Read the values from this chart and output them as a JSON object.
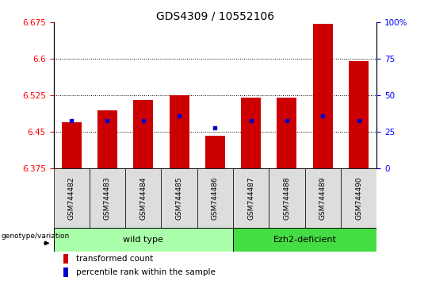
{
  "title": "GDS4309 / 10552106",
  "samples": [
    "GSM744482",
    "GSM744483",
    "GSM744484",
    "GSM744485",
    "GSM744486",
    "GSM744487",
    "GSM744488",
    "GSM744489",
    "GSM744490"
  ],
  "transformed_count": [
    6.47,
    6.495,
    6.515,
    6.525,
    6.443,
    6.52,
    6.52,
    6.672,
    6.595
  ],
  "percentile_rank": [
    33,
    33,
    33,
    36,
    28,
    33,
    33,
    36,
    33
  ],
  "ylim_left": [
    6.375,
    6.675
  ],
  "ylim_right": [
    0,
    100
  ],
  "yticks_left": [
    6.375,
    6.45,
    6.525,
    6.6,
    6.675
  ],
  "yticks_right": [
    0,
    25,
    50,
    75,
    100
  ],
  "bar_color": "#cc0000",
  "dot_color": "#0000cc",
  "bar_bottom": 6.375,
  "wild_type_indices": [
    0,
    1,
    2,
    3,
    4
  ],
  "ezh2_indices": [
    5,
    6,
    7,
    8
  ],
  "wild_type_color": "#aaffaa",
  "ezh2_color": "#44dd44",
  "wild_type_label": "wild type",
  "ezh2_label": "Ezh2-deficient",
  "group_prefix": "genotype/variation",
  "legend_items": [
    {
      "color": "#cc0000",
      "label": "transformed count"
    },
    {
      "color": "#0000cc",
      "label": "percentile rank within the sample"
    }
  ],
  "title_fontsize": 10,
  "tick_fontsize": 7.5,
  "bar_width": 0.55,
  "cell_color": "#dddddd"
}
